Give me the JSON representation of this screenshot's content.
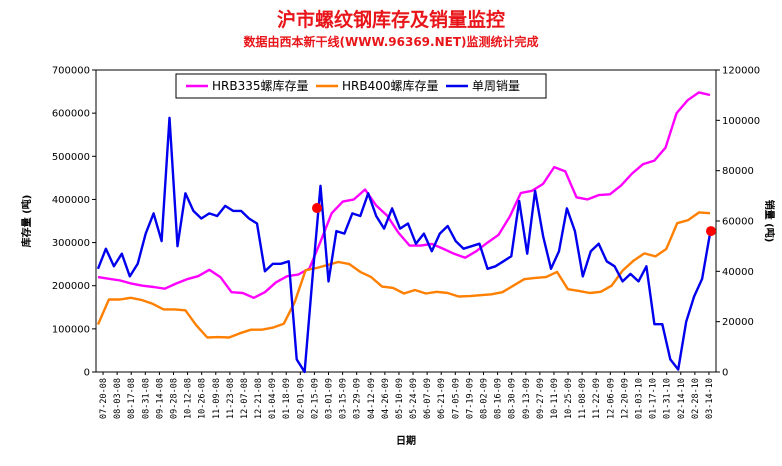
{
  "chart_data": {
    "type": "line",
    "title": "沪市螺纹钢库存及销量监控",
    "subtitle": "数据由西本新干线(WWW.96369.NET)监测统计完成",
    "xlabel": "日期",
    "ylabel_left": "库存量 (吨)",
    "ylabel_right": "销量 (吨)",
    "ylim_left": [
      0,
      700000
    ],
    "ylim_right": [
      0,
      120000
    ],
    "y_ticks_left": [
      "0",
      "100000",
      "200000",
      "300000",
      "400000",
      "500000",
      "600000",
      "700000"
    ],
    "y_ticks_right": [
      "0",
      "20000",
      "40000",
      "60000",
      "80000",
      "100000",
      "120000"
    ],
    "x_ticks": [
      "07-20-08",
      "08-03-08",
      "08-17-08",
      "08-31-08",
      "09-14-08",
      "09-28-08",
      "10-12-08",
      "10-26-08",
      "11-09-08",
      "11-23-08",
      "12-07-08",
      "12-21-08",
      "01-04-09",
      "01-18-09",
      "02-01-09",
      "02-15-09",
      "03-01-09",
      "03-15-09",
      "03-29-09",
      "04-12-09",
      "04-26-09",
      "05-10-09",
      "05-24-09",
      "06-07-09",
      "06-21-09",
      "07-05-09",
      "07-19-09",
      "08-02-09",
      "08-16-09",
      "08-30-09",
      "09-13-09",
      "09-27-09",
      "10-11-09",
      "10-25-09",
      "11-08-09",
      "11-22-09",
      "12-06-09",
      "12-20-09",
      "01-03-10",
      "01-17-10",
      "01-31-10",
      "02-14-10",
      "02-28-10",
      "03-14-10"
    ],
    "legend_position": "top-left",
    "grid": false,
    "series": [
      {
        "name": "HRB335螺库存量",
        "color": "#ff00ff",
        "axis": "left",
        "values": [
          220000,
          216000,
          212000,
          205000,
          200000,
          197000,
          193000,
          205000,
          215000,
          222000,
          237000,
          220000,
          185000,
          183000,
          172000,
          185000,
          208000,
          222000,
          226000,
          240000,
          302000,
          368000,
          395000,
          400000,
          423000,
          386000,
          362000,
          323000,
          293000,
          293000,
          297000,
          286000,
          274000,
          265000,
          280000,
          300000,
          318000,
          360000,
          415000,
          420000,
          436000,
          475000,
          465000,
          405000,
          400000,
          410000,
          412000,
          432000,
          460000,
          482000,
          490000,
          520000,
          600000,
          630000,
          648000,
          642000
        ]
      },
      {
        "name": "HRB400螺库存量",
        "color": "#ff7f00",
        "axis": "left",
        "values": [
          110000,
          168000,
          168000,
          172000,
          167000,
          158000,
          145000,
          145000,
          143000,
          108000,
          80000,
          81000,
          80000,
          90000,
          98000,
          98000,
          103000,
          112000,
          162000,
          236000,
          241000,
          248000,
          255000,
          250000,
          232000,
          220000,
          198000,
          195000,
          182000,
          190000,
          182000,
          186000,
          183000,
          175000,
          176000,
          178000,
          180000,
          185000,
          200000,
          215000,
          218000,
          220000,
          232000,
          192000,
          188000,
          183000,
          186000,
          200000,
          235000,
          258000,
          275000,
          268000,
          285000,
          345000,
          352000,
          370000,
          368000
        ]
      },
      {
        "name": "单周销量",
        "color": "#0000ee",
        "axis": "right",
        "values": [
          41000,
          49000,
          42000,
          47000,
          38000,
          43000,
          55000,
          63000,
          52000,
          101000,
          50000,
          71000,
          64000,
          61000,
          63000,
          62000,
          66000,
          64000,
          64000,
          61000,
          59000,
          40000,
          43000,
          43000,
          44000,
          5000,
          0,
          38000,
          74000,
          36000,
          56000,
          55000,
          63000,
          62000,
          71000,
          62000,
          57000,
          65000,
          57000,
          59000,
          51000,
          55000,
          48000,
          55000,
          58000,
          52000,
          49000,
          50000,
          51000,
          41000,
          42000,
          44000,
          46000,
          68000,
          47000,
          72000,
          54000,
          41000,
          48000,
          65000,
          56000,
          38000,
          48000,
          51000,
          44000,
          42000,
          36000,
          39000,
          36000,
          42000,
          19000,
          19000,
          5000,
          1000,
          20000,
          30000,
          37000,
          55000
        ]
      }
    ],
    "markers": [
      {
        "series": "HRB335螺库存量",
        "x": "02-22-09",
        "y": 380000,
        "color": "#ff0000"
      },
      {
        "series": "单周销量",
        "x": "03-14-10",
        "y": 56000,
        "color": "#ff0000"
      }
    ]
  }
}
